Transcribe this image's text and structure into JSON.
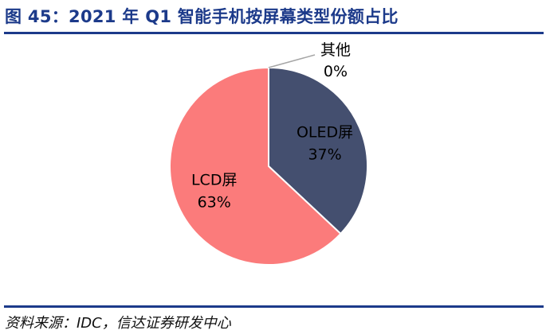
{
  "title": "图 45：2021 年 Q1 智能手机按屏幕类型份额占比",
  "source": "资料来源：IDC，信达证券研发中心",
  "chart_data": {
    "type": "pie",
    "title": "",
    "categories": [
      "OLED屏",
      "LCD屏",
      "其他"
    ],
    "values": [
      37,
      63,
      0
    ],
    "labels": [
      "37%",
      "63%",
      "0%"
    ],
    "colors": [
      "#444f6f",
      "#fb7b7b",
      "#b0b0b0"
    ],
    "start": "top",
    "direction": "clockwise",
    "legend": "none"
  }
}
